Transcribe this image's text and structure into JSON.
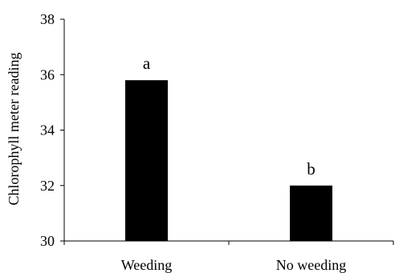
{
  "chart_data": {
    "type": "bar",
    "title": "",
    "xlabel": "",
    "ylabel": "Chlorophyll meter reading",
    "categories": [
      "Weeding",
      "No weeding"
    ],
    "values": [
      35.8,
      32.0
    ],
    "data_labels": [
      "a",
      "b"
    ],
    "ylim": [
      30,
      38
    ],
    "yticks": [
      "30",
      "32",
      "34",
      "36",
      "38"
    ],
    "grid": false,
    "legend": "none",
    "bar_color": "#000000"
  }
}
